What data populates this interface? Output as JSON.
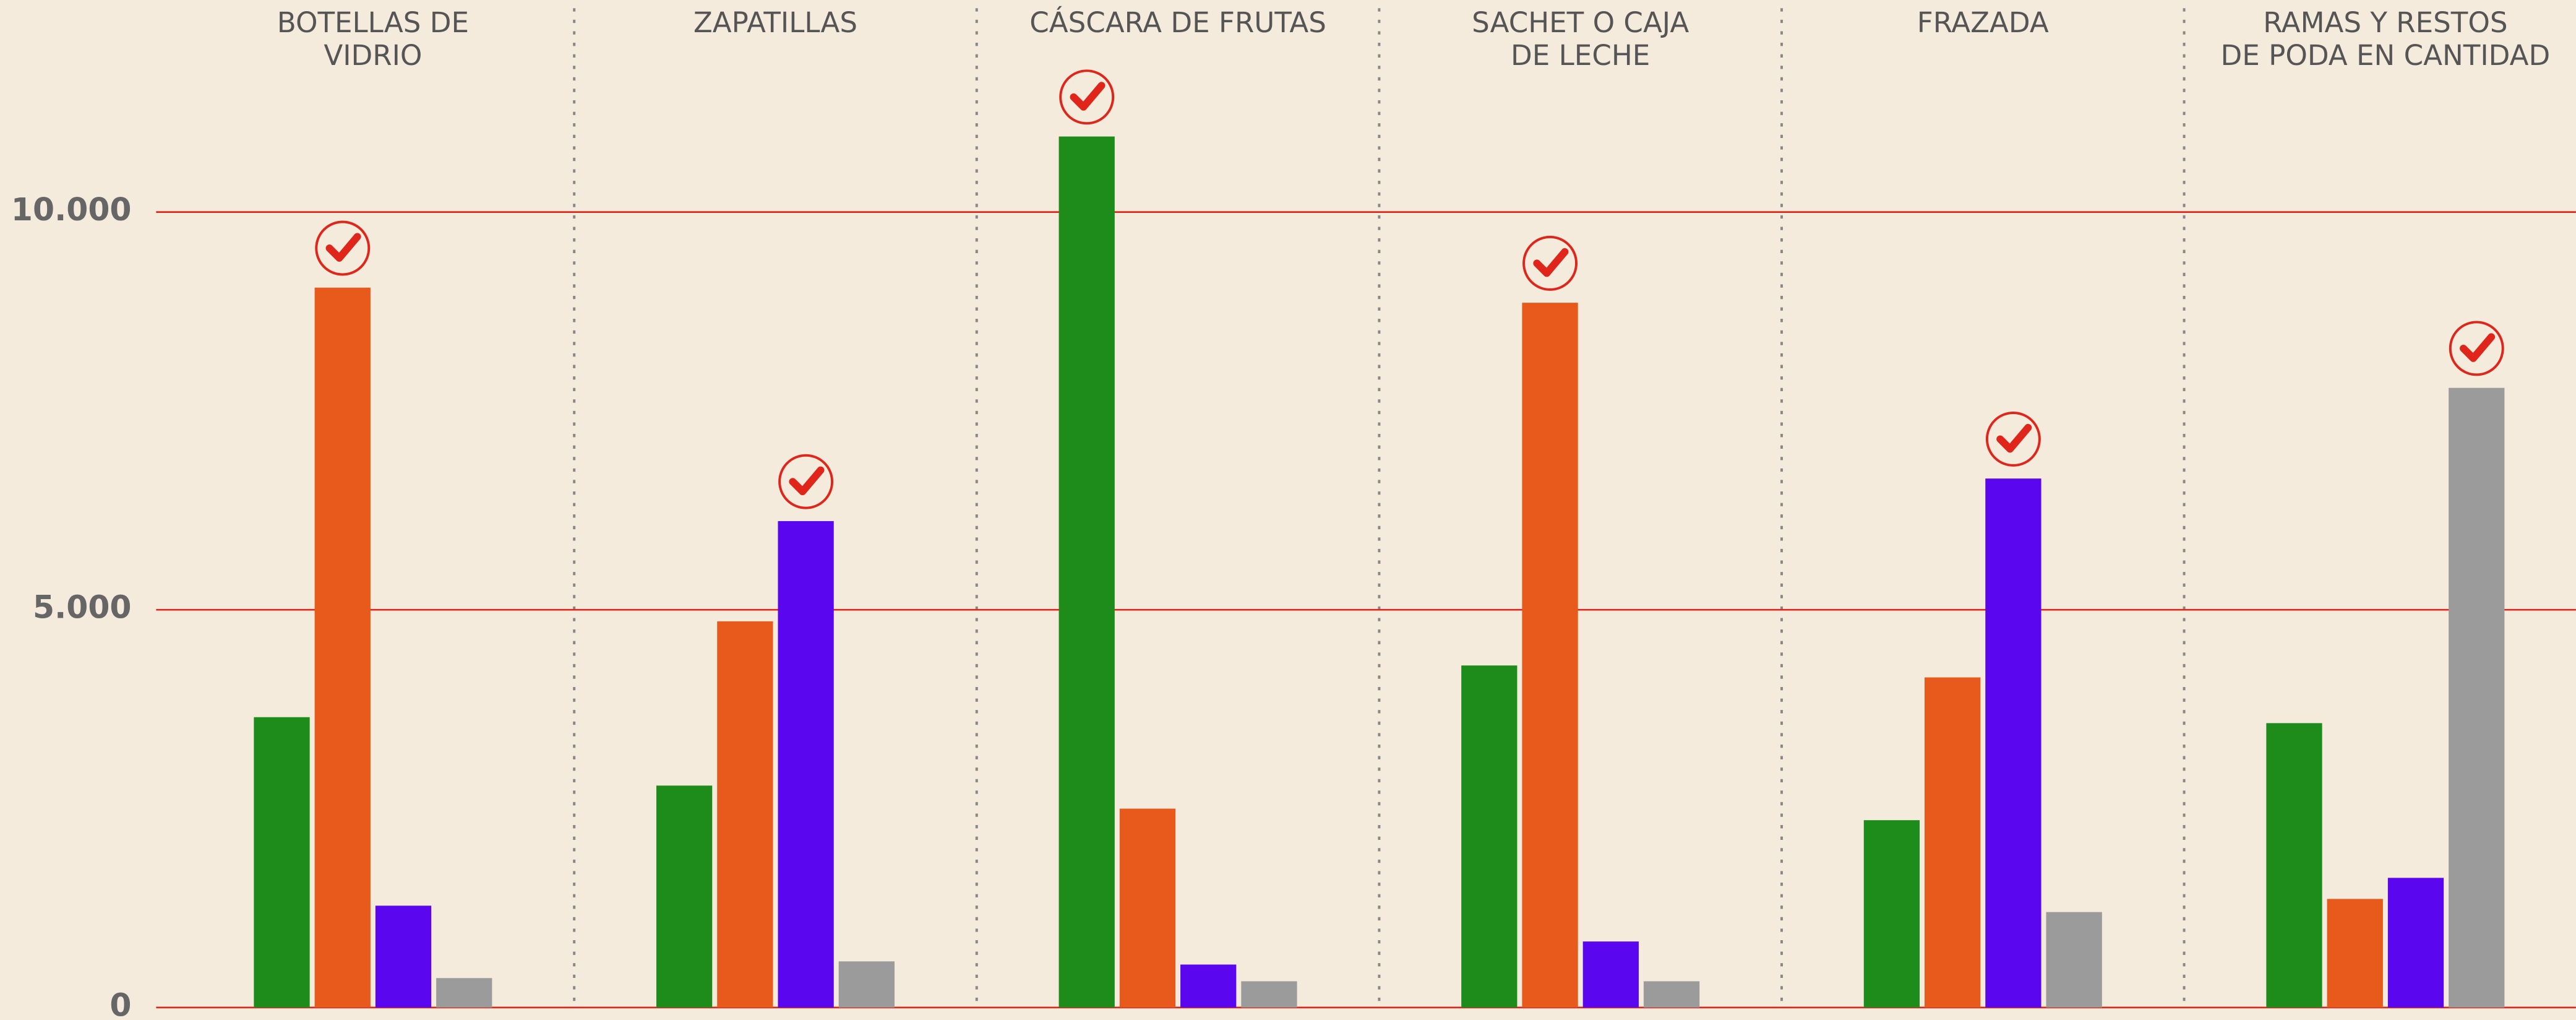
{
  "chart_data": {
    "type": "bar",
    "categories": [
      "BOTELLAS DE\nVIDRIO",
      "ZAPATILLAS",
      "CÁSCARA DE FRUTAS",
      "SACHET O CAJA\nDE LECHE",
      "FRAZADA",
      "RAMAS Y RESTOS\nDE PODA EN CANTIDAD"
    ],
    "series": [
      {
        "color": "#1e8c1a",
        "values": [
          3650,
          2790,
          10950,
          4300,
          2355,
          3575
        ]
      },
      {
        "color": "#e85a1c",
        "values": [
          9050,
          4855,
          2500,
          8860,
          4150,
          1365
        ]
      },
      {
        "color": "#5a07ef",
        "values": [
          1280,
          6115,
          540,
          830,
          6650,
          1630
        ]
      },
      {
        "color": "#9b9b9b",
        "values": [
          370,
          580,
          330,
          330,
          1200,
          7790
        ]
      }
    ],
    "ylim": [
      0,
      12666
    ],
    "yticks": [
      0,
      {
        "value": 5000,
        "label": "5.000"
      },
      {
        "value": 10000,
        "label": "10.000"
      }
    ],
    "grid": true
  }
}
